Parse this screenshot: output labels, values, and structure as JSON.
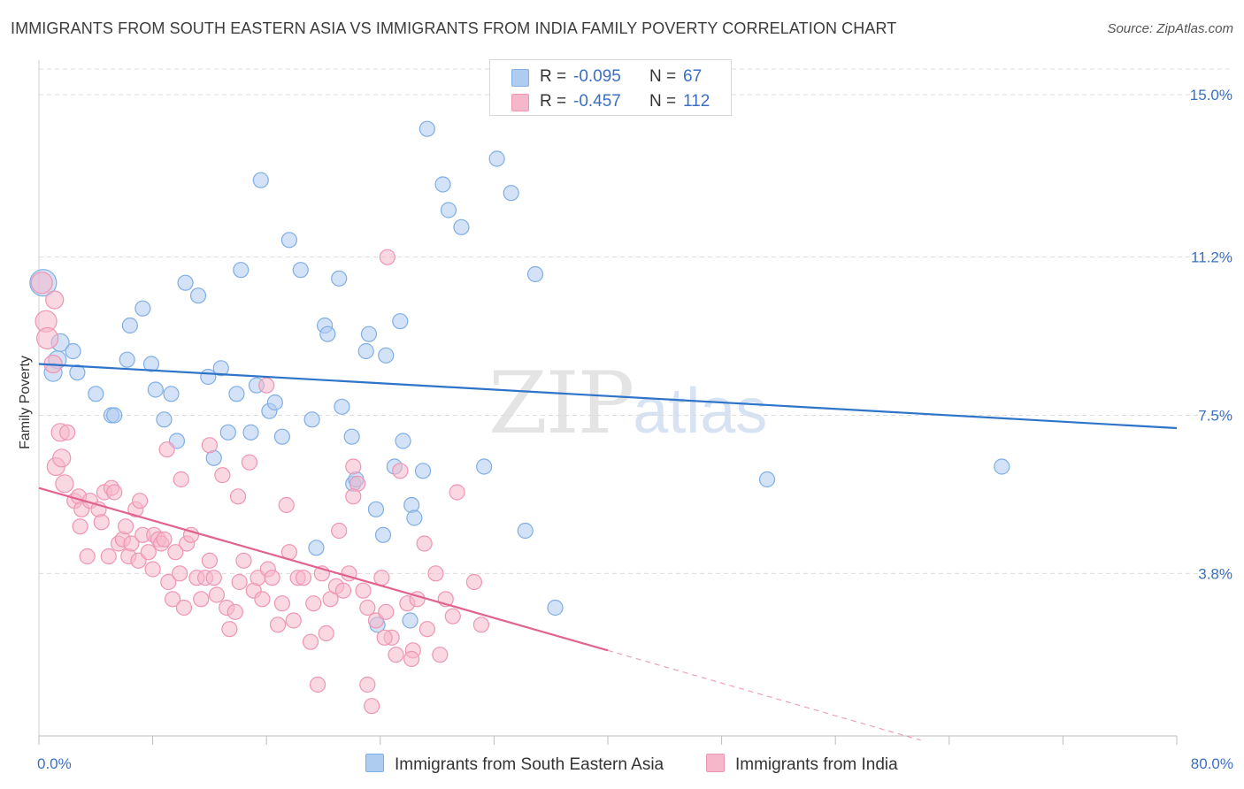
{
  "title": "IMMIGRANTS FROM SOUTH EASTERN ASIA VS IMMIGRANTS FROM INDIA FAMILY POVERTY CORRELATION CHART",
  "source": "Source: ZipAtlas.com",
  "watermark": {
    "zip": "ZIP",
    "atlas": "atlas"
  },
  "legend": {
    "rows": [
      {
        "r_label": "R =",
        "r_value": "-0.095",
        "n_label": "N =",
        "n_value": "67",
        "color": "#aecbf0"
      },
      {
        "r_label": "R =",
        "r_value": "-0.457",
        "n_label": "N =",
        "n_value": "112",
        "color": "#f5b8cb"
      }
    ]
  },
  "bottom_legend": [
    {
      "label": "Immigrants from South Eastern Asia",
      "color": "#aecbf0"
    },
    {
      "label": "Immigrants from India",
      "color": "#f5b8cb"
    }
  ],
  "chart_data": {
    "type": "scatter",
    "title": "IMMIGRANTS FROM SOUTH EASTERN ASIA VS IMMIGRANTS FROM INDIA FAMILY POVERTY CORRELATION CHART",
    "xlabel": "",
    "ylabel": "Family Poverty",
    "xlim": [
      0,
      80
    ],
    "ylim": [
      0,
      15.6
    ],
    "x_tick_labels": [
      "0.0%",
      "80.0%"
    ],
    "y_ticks": [
      {
        "value": 3.8,
        "label": "3.8%"
      },
      {
        "value": 7.5,
        "label": "7.5%"
      },
      {
        "value": 11.2,
        "label": "11.2%"
      },
      {
        "value": 15.0,
        "label": "15.0%"
      }
    ],
    "series": [
      {
        "name": "Immigrants from South Eastern Asia",
        "color": "#7faee6",
        "fill": "#aecbf0",
        "trend": {
          "x": [
            0,
            80
          ],
          "y": [
            8.7,
            7.2
          ],
          "color": "#2e74c9"
        },
        "points": [
          [
            0.3,
            10.6
          ],
          [
            1.5,
            9.2
          ],
          [
            1.3,
            8.8
          ],
          [
            1.0,
            8.5
          ],
          [
            2.4,
            9.0
          ],
          [
            2.7,
            8.5
          ],
          [
            4.0,
            8.0
          ],
          [
            5.1,
            7.5
          ],
          [
            5.3,
            7.5
          ],
          [
            6.2,
            8.8
          ],
          [
            6.4,
            9.6
          ],
          [
            7.3,
            10.0
          ],
          [
            7.9,
            8.7
          ],
          [
            8.2,
            8.1
          ],
          [
            8.8,
            7.4
          ],
          [
            9.3,
            8.0
          ],
          [
            9.7,
            6.9
          ],
          [
            10.3,
            10.6
          ],
          [
            11.2,
            10.3
          ],
          [
            11.9,
            8.4
          ],
          [
            12.3,
            6.5
          ],
          [
            12.8,
            8.6
          ],
          [
            13.3,
            7.1
          ],
          [
            13.9,
            8.0
          ],
          [
            14.2,
            10.9
          ],
          [
            14.9,
            7.1
          ],
          [
            15.3,
            8.2
          ],
          [
            15.6,
            13.0
          ],
          [
            16.2,
            7.6
          ],
          [
            16.6,
            7.8
          ],
          [
            17.1,
            7.0
          ],
          [
            17.6,
            11.6
          ],
          [
            18.4,
            10.9
          ],
          [
            19.2,
            7.4
          ],
          [
            19.5,
            4.4
          ],
          [
            20.1,
            9.6
          ],
          [
            21.1,
            10.7
          ],
          [
            20.3,
            9.4
          ],
          [
            21.3,
            7.7
          ],
          [
            22.1,
            5.9
          ],
          [
            22.3,
            6.0
          ],
          [
            23.0,
            9.0
          ],
          [
            23.2,
            9.4
          ],
          [
            23.7,
            5.3
          ],
          [
            24.2,
            4.7
          ],
          [
            24.4,
            8.9
          ],
          [
            25.4,
            9.7
          ],
          [
            25.6,
            6.9
          ],
          [
            26.2,
            5.4
          ],
          [
            26.4,
            5.1
          ],
          [
            27.3,
            14.2
          ],
          [
            28.4,
            12.9
          ],
          [
            28.8,
            12.3
          ],
          [
            29.7,
            11.9
          ],
          [
            31.3,
            6.3
          ],
          [
            32.2,
            13.5
          ],
          [
            33.2,
            12.7
          ],
          [
            34.2,
            4.8
          ],
          [
            34.9,
            10.8
          ],
          [
            36.3,
            3.0
          ],
          [
            27.0,
            6.2
          ],
          [
            25.0,
            6.3
          ],
          [
            22.0,
            7.0
          ],
          [
            23.8,
            2.6
          ],
          [
            51.2,
            6.0
          ],
          [
            67.7,
            6.3
          ],
          [
            26.1,
            2.7
          ]
        ]
      },
      {
        "name": "Immigrants from India",
        "color": "#ee95b3",
        "fill": "#f5b8cb",
        "trend": {
          "x": [
            0,
            40
          ],
          "y": [
            5.8,
            2.0
          ],
          "color": "#e0638f"
        },
        "trend_dashed": {
          "x": [
            40,
            62
          ],
          "y": [
            2.0,
            -0.1
          ]
        },
        "points": [
          [
            0.2,
            10.6
          ],
          [
            1.1,
            10.2
          ],
          [
            0.5,
            9.7
          ],
          [
            0.6,
            9.3
          ],
          [
            1.0,
            8.7
          ],
          [
            1.5,
            7.1
          ],
          [
            2.0,
            7.1
          ],
          [
            1.2,
            6.3
          ],
          [
            1.6,
            6.5
          ],
          [
            1.8,
            5.9
          ],
          [
            2.5,
            5.5
          ],
          [
            2.8,
            5.6
          ],
          [
            3.0,
            5.3
          ],
          [
            2.9,
            4.9
          ],
          [
            3.4,
            4.2
          ],
          [
            3.6,
            5.5
          ],
          [
            4.2,
            5.3
          ],
          [
            4.4,
            5.0
          ],
          [
            4.6,
            5.7
          ],
          [
            4.9,
            4.2
          ],
          [
            5.1,
            5.8
          ],
          [
            5.3,
            5.7
          ],
          [
            5.6,
            4.5
          ],
          [
            5.9,
            4.6
          ],
          [
            6.1,
            4.9
          ],
          [
            6.3,
            4.2
          ],
          [
            6.5,
            4.5
          ],
          [
            6.8,
            5.3
          ],
          [
            7.0,
            4.1
          ],
          [
            7.1,
            5.5
          ],
          [
            7.3,
            4.7
          ],
          [
            7.7,
            4.3
          ],
          [
            8.0,
            3.9
          ],
          [
            8.1,
            4.7
          ],
          [
            8.4,
            4.6
          ],
          [
            8.6,
            4.5
          ],
          [
            8.8,
            4.6
          ],
          [
            9.1,
            3.6
          ],
          [
            9.4,
            3.2
          ],
          [
            9.6,
            4.3
          ],
          [
            9.9,
            3.8
          ],
          [
            10.2,
            3.0
          ],
          [
            10.4,
            4.5
          ],
          [
            10.7,
            4.7
          ],
          [
            11.1,
            3.7
          ],
          [
            11.4,
            3.2
          ],
          [
            11.7,
            3.7
          ],
          [
            12.0,
            4.1
          ],
          [
            12.3,
            3.7
          ],
          [
            12.5,
            3.3
          ],
          [
            12.9,
            6.1
          ],
          [
            13.2,
            3.0
          ],
          [
            13.4,
            2.5
          ],
          [
            13.8,
            2.9
          ],
          [
            14.1,
            3.6
          ],
          [
            14.4,
            4.1
          ],
          [
            14.8,
            6.4
          ],
          [
            15.1,
            3.4
          ],
          [
            15.4,
            3.7
          ],
          [
            15.7,
            3.2
          ],
          [
            16.1,
            3.9
          ],
          [
            16.4,
            3.7
          ],
          [
            16.8,
            2.6
          ],
          [
            17.1,
            3.1
          ],
          [
            17.4,
            5.4
          ],
          [
            17.6,
            4.3
          ],
          [
            17.9,
            2.7
          ],
          [
            18.2,
            3.7
          ],
          [
            18.6,
            3.7
          ],
          [
            19.1,
            2.2
          ],
          [
            19.3,
            3.1
          ],
          [
            19.6,
            1.2
          ],
          [
            19.9,
            3.8
          ],
          [
            20.2,
            2.4
          ],
          [
            20.5,
            3.2
          ],
          [
            20.9,
            3.5
          ],
          [
            21.1,
            4.8
          ],
          [
            21.4,
            3.4
          ],
          [
            21.8,
            3.8
          ],
          [
            22.1,
            6.3
          ],
          [
            22.4,
            5.9
          ],
          [
            22.8,
            3.4
          ],
          [
            23.1,
            3.0
          ],
          [
            23.4,
            0.7
          ],
          [
            23.7,
            2.7
          ],
          [
            24.1,
            3.7
          ],
          [
            24.4,
            2.9
          ],
          [
            24.8,
            2.3
          ],
          [
            25.1,
            1.9
          ],
          [
            25.4,
            6.2
          ],
          [
            25.9,
            3.1
          ],
          [
            26.3,
            2.0
          ],
          [
            26.6,
            3.2
          ],
          [
            27.1,
            4.5
          ],
          [
            27.9,
            3.8
          ],
          [
            28.2,
            1.9
          ],
          [
            28.6,
            3.2
          ],
          [
            29.1,
            2.8
          ],
          [
            29.4,
            5.7
          ],
          [
            30.6,
            3.6
          ],
          [
            31.1,
            2.6
          ],
          [
            9.0,
            6.7
          ],
          [
            10.0,
            6.0
          ],
          [
            12.0,
            6.8
          ],
          [
            14.0,
            5.6
          ],
          [
            16.0,
            8.2
          ],
          [
            22.1,
            5.6
          ],
          [
            24.5,
            11.2
          ],
          [
            26.2,
            1.8
          ],
          [
            27.3,
            2.5
          ],
          [
            23.1,
            1.2
          ],
          [
            24.3,
            2.3
          ]
        ]
      }
    ]
  }
}
